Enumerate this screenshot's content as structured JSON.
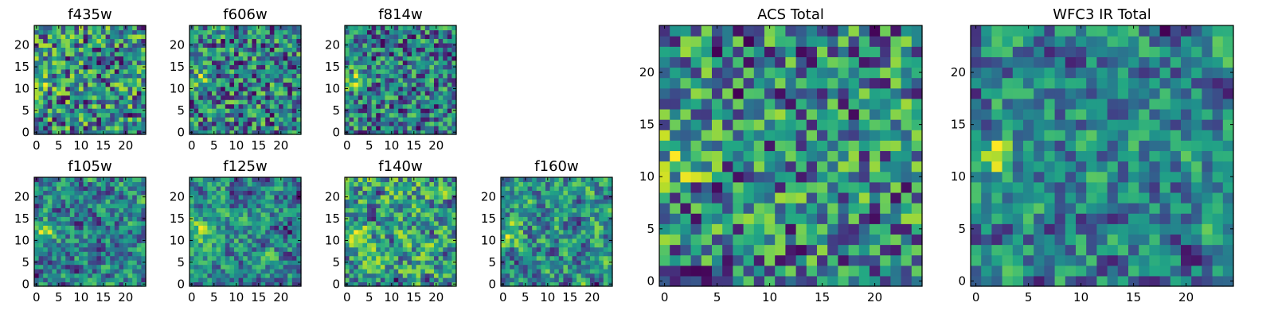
{
  "figure": {
    "description_colormap": "viridis",
    "background": "#ffffff"
  },
  "chart_data": [
    {
      "type": "heatmap",
      "title": "f435w",
      "size": 25,
      "seed": 11,
      "smooth": 0,
      "gain": 0.55,
      "xticks": [
        0,
        5,
        10,
        15,
        20
      ],
      "yticks": [
        0,
        5,
        10,
        15,
        20
      ],
      "xlim": [
        -0.5,
        24.5
      ],
      "ylim": [
        -0.5,
        24.5
      ],
      "colormap": "viridis",
      "grid": false
    },
    {
      "type": "heatmap",
      "title": "f606w",
      "size": 25,
      "seed": 23,
      "smooth": 0,
      "gain": 0.5,
      "xticks": [
        0,
        5,
        10,
        15,
        20
      ],
      "yticks": [
        0,
        5,
        10,
        15,
        20
      ],
      "xlim": [
        -0.5,
        24.5
      ],
      "ylim": [
        -0.5,
        24.5
      ],
      "colormap": "viridis",
      "grid": false
    },
    {
      "type": "heatmap",
      "title": "f814w",
      "size": 25,
      "seed": 37,
      "smooth": 0,
      "gain": 0.5,
      "xticks": [
        0,
        5,
        10,
        15,
        20
      ],
      "yticks": [
        0,
        5,
        10,
        15,
        20
      ],
      "xlim": [
        -0.5,
        24.5
      ],
      "ylim": [
        -0.5,
        24.5
      ],
      "colormap": "viridis",
      "grid": false
    },
    {
      "type": "heatmap",
      "title": "f105w",
      "size": 25,
      "seed": 41,
      "smooth": 1,
      "gain": 0.45,
      "xticks": [
        0,
        5,
        10,
        15,
        20
      ],
      "yticks": [
        0,
        5,
        10,
        15,
        20
      ],
      "xlim": [
        -0.5,
        24.5
      ],
      "ylim": [
        -0.5,
        24.5
      ],
      "colormap": "viridis",
      "grid": false
    },
    {
      "type": "heatmap",
      "title": "f125w",
      "size": 25,
      "seed": 53,
      "smooth": 1,
      "gain": 0.62,
      "xticks": [
        0,
        5,
        10,
        15,
        20
      ],
      "yticks": [
        0,
        5,
        10,
        15,
        20
      ],
      "xlim": [
        -0.5,
        24.5
      ],
      "ylim": [
        -0.5,
        24.5
      ],
      "colormap": "viridis",
      "grid": false
    },
    {
      "type": "heatmap",
      "title": "f140w",
      "size": 25,
      "seed": 67,
      "smooth": 1,
      "gain": 0.7,
      "xticks": [
        0,
        5,
        10,
        15,
        20
      ],
      "yticks": [
        0,
        5,
        10,
        15,
        20
      ],
      "xlim": [
        -0.5,
        24.5
      ],
      "ylim": [
        -0.5,
        24.5
      ],
      "colormap": "viridis",
      "grid": false
    },
    {
      "type": "heatmap",
      "title": "f160w",
      "size": 25,
      "seed": 79,
      "smooth": 1,
      "gain": 0.45,
      "xticks": [
        0,
        5,
        10,
        15,
        20
      ],
      "yticks": [
        0,
        5,
        10,
        15,
        20
      ],
      "xlim": [
        -0.5,
        24.5
      ],
      "ylim": [
        -0.5,
        24.5
      ],
      "colormap": "viridis",
      "grid": false
    },
    {
      "type": "heatmap",
      "title": "ACS Total",
      "size": 25,
      "seed": 97,
      "smooth": 0,
      "gain": 0.58,
      "xticks": [
        0,
        5,
        10,
        15,
        20
      ],
      "yticks": [
        0,
        5,
        10,
        15,
        20
      ],
      "xlim": [
        -0.5,
        24.5
      ],
      "ylim": [
        -0.5,
        24.5
      ],
      "colormap": "viridis",
      "grid": false
    },
    {
      "type": "heatmap",
      "title": "WFC3 IR Total",
      "size": 25,
      "seed": 113,
      "smooth": 1,
      "gain": 0.55,
      "xticks": [
        0,
        5,
        10,
        15,
        20
      ],
      "yticks": [
        0,
        5,
        10,
        15,
        20
      ],
      "xlim": [
        -0.5,
        24.5
      ],
      "ylim": [
        -0.5,
        24.5
      ],
      "colormap": "viridis",
      "grid": false
    }
  ]
}
